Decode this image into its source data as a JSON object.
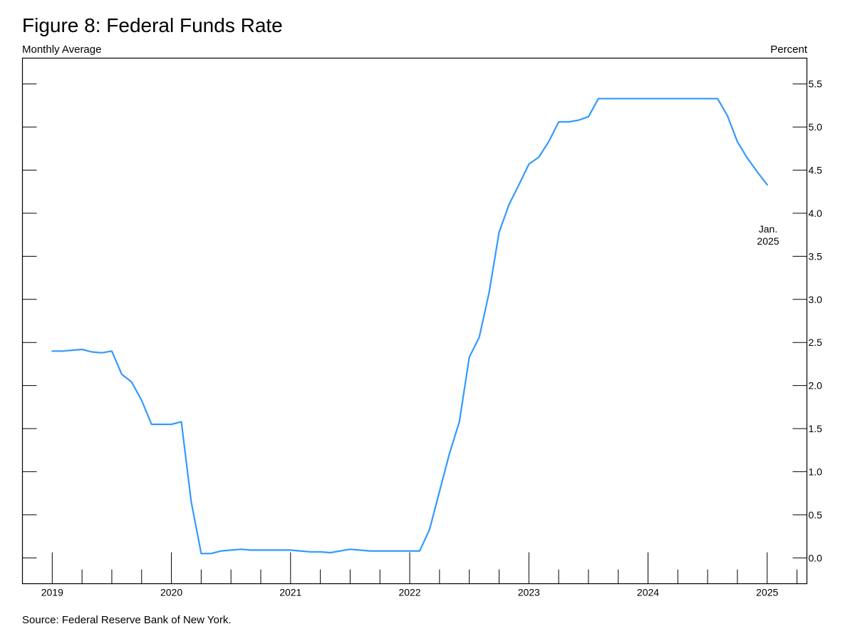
{
  "chart_data": {
    "type": "line",
    "title": "Figure 8: Federal Funds Rate",
    "left_label": "Monthly Average",
    "right_label": "Percent",
    "source": "Source: Federal Reserve Bank of New York.",
    "annotation": {
      "line1": "Jan.",
      "line2": "2025"
    },
    "x_tick_labels": [
      "2019",
      "2020",
      "2021",
      "2022",
      "2023",
      "2024",
      "2025"
    ],
    "y_tick_labels": [
      "0.0",
      "0.5",
      "1.0",
      "1.5",
      "2.0",
      "2.5",
      "3.0",
      "3.5",
      "4.0",
      "4.5",
      "5.0",
      "5.5"
    ],
    "xlim": [
      "2018-10",
      "2025-05"
    ],
    "ylim": [
      -0.3,
      5.8
    ],
    "grid": false,
    "line_color": "#3399ff",
    "series": [
      {
        "x": [
          "2019-01",
          "2019-02",
          "2019-03",
          "2019-04",
          "2019-05",
          "2019-06",
          "2019-07",
          "2019-08",
          "2019-09",
          "2019-10",
          "2019-11",
          "2019-12",
          "2020-01",
          "2020-02",
          "2020-03",
          "2020-04",
          "2020-05",
          "2020-06",
          "2020-07",
          "2020-08",
          "2020-09",
          "2020-10",
          "2020-11",
          "2020-12",
          "2021-01",
          "2021-02",
          "2021-03",
          "2021-04",
          "2021-05",
          "2021-06",
          "2021-07",
          "2021-08",
          "2021-09",
          "2021-10",
          "2021-11",
          "2021-12",
          "2022-01",
          "2022-02",
          "2022-03",
          "2022-04",
          "2022-05",
          "2022-06",
          "2022-07",
          "2022-08",
          "2022-09",
          "2022-10",
          "2022-11",
          "2022-12",
          "2023-01",
          "2023-02",
          "2023-03",
          "2023-04",
          "2023-05",
          "2023-06",
          "2023-07",
          "2023-08",
          "2023-09",
          "2023-10",
          "2023-11",
          "2023-12",
          "2024-01",
          "2024-02",
          "2024-03",
          "2024-04",
          "2024-05",
          "2024-06",
          "2024-07",
          "2024-08",
          "2024-09",
          "2024-10",
          "2024-11",
          "2024-12",
          "2025-01"
        ],
        "values": [
          2.4,
          2.4,
          2.41,
          2.42,
          2.39,
          2.38,
          2.4,
          2.13,
          2.04,
          1.83,
          1.55,
          1.55,
          1.55,
          1.58,
          0.65,
          0.05,
          0.05,
          0.08,
          0.09,
          0.1,
          0.09,
          0.09,
          0.09,
          0.09,
          0.09,
          0.08,
          0.07,
          0.07,
          0.06,
          0.08,
          0.1,
          0.09,
          0.08,
          0.08,
          0.08,
          0.08,
          0.08,
          0.08,
          0.33,
          0.77,
          1.21,
          1.58,
          2.33,
          2.56,
          3.08,
          3.78,
          4.1,
          4.33,
          4.57,
          4.65,
          4.83,
          5.06,
          5.06,
          5.08,
          5.12,
          5.33,
          5.33,
          5.33,
          5.33,
          5.33,
          5.33,
          5.33,
          5.33,
          5.33,
          5.33,
          5.33,
          5.33,
          5.33,
          5.13,
          4.83,
          4.64,
          4.48,
          4.33
        ]
      }
    ]
  }
}
